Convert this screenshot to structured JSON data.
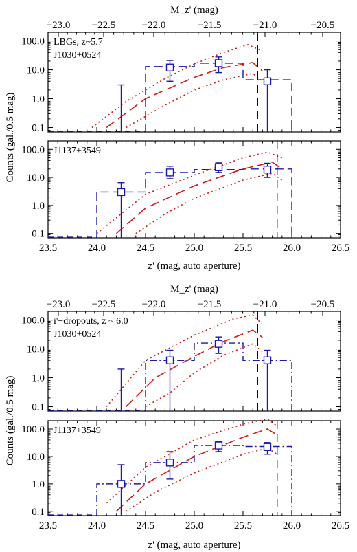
{
  "colors": {
    "observed": "#1a1aa8",
    "model": "#d01818",
    "limit": "#000000"
  },
  "chart_data": [
    {
      "type": "line",
      "panel_group": "top",
      "annotation": [
        "LBGs, z~5.7",
        "J1030+0524"
      ],
      "xlabel": "z'  (mag, auto aperture)",
      "ylabel": "Counts (gal./0.5 mag)",
      "top_axis_label": "M_z' (mag)",
      "top_ticks": [
        "-23.0",
        "-22.5",
        "-22.0",
        "-21.5",
        "-21.0",
        "-20.5"
      ],
      "x_ticks": [
        "23.5",
        "24.0",
        "24.5",
        "25.0",
        "25.5",
        "26.0",
        "26.5"
      ],
      "y_ticks": [
        "0.1",
        "1.0",
        "10.0",
        "100.0"
      ],
      "xlim": [
        23.5,
        26.5
      ],
      "ylim": [
        0.07,
        200
      ],
      "yscale": "log",
      "limit_mag": 25.65,
      "observed_hist": {
        "edges": [
          24.5,
          25.0,
          25.5,
          26.0
        ],
        "values": [
          13,
          17,
          4.5
        ]
      },
      "points": [
        {
          "x": 24.25,
          "y": 0.07,
          "yerr": [
            0.07,
            3.0
          ]
        },
        {
          "x": 24.75,
          "y": 12,
          "yerr": [
            4,
            21
          ]
        },
        {
          "x": 25.25,
          "y": 17,
          "yerr": [
            8,
            28
          ]
        },
        {
          "x": 25.75,
          "y": 4,
          "yerr": [
            0.07,
            10
          ]
        }
      ],
      "model": {
        "x": [
          24.1,
          24.5,
          25.0,
          25.3,
          25.6,
          25.7
        ],
        "y": [
          0.1,
          1.0,
          5.5,
          12,
          18,
          9
        ]
      },
      "model_upper": {
        "x": [
          23.95,
          24.3,
          24.7,
          25.0,
          25.3,
          25.55,
          25.7
        ],
        "y": [
          0.1,
          0.8,
          5,
          16,
          40,
          75,
          45
        ]
      },
      "model_lower": {
        "x": [
          24.3,
          24.7,
          25.0,
          25.3,
          25.6,
          25.7
        ],
        "y": [
          0.1,
          0.6,
          2.0,
          4.5,
          7.5,
          4
        ]
      }
    },
    {
      "type": "line",
      "panel_group": "top",
      "annotation": [
        "J1137+3549"
      ],
      "xlabel": "",
      "ylabel": "",
      "xlim": [
        23.5,
        26.5
      ],
      "ylim": [
        0.07,
        200
      ],
      "yscale": "log",
      "limit_mag": 25.85,
      "observed_hist": {
        "edges": [
          24.0,
          24.5,
          25.0,
          25.5,
          26.0
        ],
        "values": [
          3,
          15,
          19,
          20
        ]
      },
      "points": [
        {
          "x": 24.25,
          "y": 3,
          "yerr": [
            0.07,
            6.5
          ]
        },
        {
          "x": 24.75,
          "y": 15,
          "yerr": [
            9,
            25
          ]
        },
        {
          "x": 25.25,
          "y": 23,
          "yerr": [
            15,
            33
          ]
        },
        {
          "x": 25.75,
          "y": 19,
          "yerr": [
            10,
            32
          ]
        }
      ],
      "model": {
        "x": [
          24.2,
          24.5,
          25.0,
          25.5,
          25.8,
          25.9
        ],
        "y": [
          0.1,
          0.8,
          5,
          20,
          35,
          20
        ]
      },
      "model_upper": {
        "x": [
          24.0,
          24.5,
          25.0,
          25.5,
          25.75,
          25.9
        ],
        "y": [
          0.1,
          2.5,
          12,
          50,
          80,
          50
        ]
      },
      "model_lower": {
        "x": [
          24.4,
          24.7,
          25.0,
          25.5,
          25.8,
          25.9
        ],
        "y": [
          0.1,
          0.5,
          1.8,
          8,
          14,
          8
        ]
      }
    },
    {
      "type": "line",
      "panel_group": "bottom",
      "annotation": [
        "i'−dropouts, z ~ 6.0",
        "J1030+0524"
      ],
      "xlabel": "z'  (mag, auto aperture)",
      "ylabel": "Counts (gal./0.5 mag)",
      "top_axis_label": "M_z' (mag)",
      "top_ticks": [
        "-23.0",
        "-22.5",
        "-22.0",
        "-21.5",
        "-21.0",
        "-20.5"
      ],
      "x_ticks": [
        "23.5",
        "24.0",
        "24.5",
        "25.0",
        "25.5",
        "26.0",
        "26.5"
      ],
      "y_ticks": [
        "0.1",
        "1.0",
        "10.0",
        "100.0"
      ],
      "xlim": [
        23.5,
        26.5
      ],
      "ylim": [
        0.07,
        200
      ],
      "yscale": "log",
      "limit_mag": 25.65,
      "observed_hist": {
        "edges": [
          24.5,
          25.0,
          25.5,
          26.0
        ],
        "values": [
          4,
          16,
          4
        ]
      },
      "points": [
        {
          "x": 24.25,
          "y": 0.07,
          "yerr": [
            0.07,
            2.0
          ]
        },
        {
          "x": 24.75,
          "y": 4,
          "yerr": [
            0.07,
            9
          ]
        },
        {
          "x": 25.25,
          "y": 15,
          "yerr": [
            7,
            26
          ]
        },
        {
          "x": 25.75,
          "y": 4,
          "yerr": [
            0.07,
            9
          ]
        }
      ],
      "model": {
        "x": [
          24.3,
          24.6,
          25.0,
          25.3,
          25.6,
          25.7
        ],
        "y": [
          0.1,
          1.0,
          5.5,
          18,
          45,
          25
        ]
      },
      "model_upper": {
        "x": [
          24.1,
          24.5,
          25.0,
          25.4,
          25.6,
          25.7
        ],
        "y": [
          0.1,
          4,
          30,
          110,
          150,
          70
        ]
      },
      "model_lower": {
        "x": [
          24.5,
          24.75,
          25.0,
          25.3,
          25.6,
          25.7
        ],
        "y": [
          0.1,
          0.3,
          1.5,
          6,
          15,
          8
        ]
      }
    },
    {
      "type": "line",
      "panel_group": "bottom",
      "annotation": [
        "J1137+3549"
      ],
      "xlabel": "",
      "ylabel": "",
      "xlim": [
        23.5,
        26.5
      ],
      "ylim": [
        0.07,
        200
      ],
      "yscale": "log",
      "limit_mag": 25.85,
      "observed_hist": {
        "edges": [
          24.0,
          24.5,
          25.0,
          25.5,
          26.0
        ],
        "values": [
          1,
          6,
          25,
          23
        ]
      },
      "points": [
        {
          "x": 24.25,
          "y": 1,
          "yerr": [
            0.07,
            5
          ]
        },
        {
          "x": 24.75,
          "y": 6,
          "yerr": [
            1.5,
            15
          ]
        },
        {
          "x": 25.25,
          "y": 25,
          "yerr": [
            15,
            35
          ]
        },
        {
          "x": 25.75,
          "y": 22,
          "yerr": [
            12,
            32
          ]
        }
      ],
      "model": {
        "x": [
          24.2,
          24.5,
          25.0,
          25.5,
          25.75,
          25.85
        ],
        "y": [
          0.1,
          1.0,
          10,
          50,
          100,
          60
        ]
      },
      "model_upper": {
        "x": [
          24.1,
          24.5,
          25.0,
          25.5,
          25.75,
          25.85
        ],
        "y": [
          0.2,
          4,
          40,
          150,
          230,
          130
        ]
      },
      "model_lower": {
        "x": [
          24.3,
          24.6,
          25.0,
          25.5,
          25.75,
          25.85
        ],
        "y": [
          0.1,
          0.5,
          2.5,
          12,
          20,
          12
        ]
      }
    }
  ]
}
